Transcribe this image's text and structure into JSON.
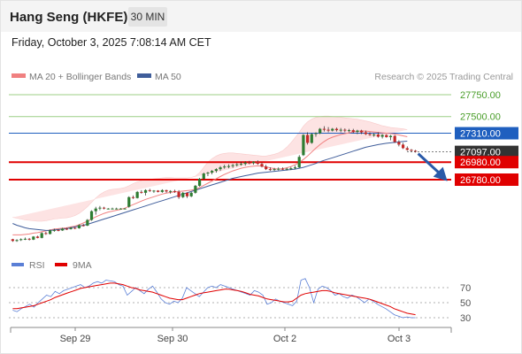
{
  "header": {
    "title": "Hang Seng (HKFE)",
    "timeframe": "30 MIN"
  },
  "datetime": "Friday, October 3, 2025 7:08:14 AM CET",
  "legend": {
    "ma20": "MA 20 + Bollinger Bands",
    "ma50": "MA 50",
    "credit": "Research © 2025 Trading Central"
  },
  "colors": {
    "candle_up": "#2e7d32",
    "candle_down": "#c62828",
    "ma20": "#f08080",
    "ma50": "#3f5d9a",
    "bollinger_fill": "#fde3e3",
    "resistance": "#4a9e2a",
    "pivot": "#1f5fbf",
    "support": "#e00000",
    "current": "#333333",
    "rsi": "#5a7fd6",
    "rsi_ma": "#e00000",
    "arrow": "#2a5aa8"
  },
  "chart_data": [
    {
      "type": "candlestick",
      "y_scale": [
        26700,
        27810
      ],
      "levels": [
        {
          "label": "27750.00",
          "value": 27750,
          "kind": "resistance"
        },
        {
          "label": "27500.00",
          "value": 27500,
          "kind": "resistance"
        },
        {
          "label": "27310.00",
          "value": 27310,
          "kind": "pivot"
        },
        {
          "label": "27097.00",
          "value": 27097,
          "kind": "current"
        },
        {
          "label": "26980.00",
          "value": 26980,
          "kind": "support"
        },
        {
          "label": "26780.00",
          "value": 26780,
          "kind": "support"
        }
      ],
      "x_labels": [
        "Sep 29",
        "Sep 30",
        "Oct 2",
        "Oct 3"
      ],
      "ohlc": [
        [
          26100,
          26105,
          26070,
          26080
        ],
        [
          26080,
          26100,
          26070,
          26090
        ],
        [
          26090,
          26110,
          26080,
          26100
        ],
        [
          26100,
          26120,
          26090,
          26105
        ],
        [
          26105,
          26115,
          26085,
          26095
        ],
        [
          26095,
          26135,
          26090,
          26130
        ],
        [
          26130,
          26140,
          26110,
          26115
        ],
        [
          26115,
          26180,
          26110,
          26170
        ],
        [
          26170,
          26185,
          26150,
          26160
        ],
        [
          26160,
          26210,
          26155,
          26200
        ],
        [
          26200,
          26220,
          26185,
          26205
        ],
        [
          26205,
          26215,
          26190,
          26200
        ],
        [
          26200,
          26230,
          26195,
          26220
        ],
        [
          26220,
          26230,
          26205,
          26215
        ],
        [
          26215,
          26240,
          26210,
          26230
        ],
        [
          26230,
          26235,
          26215,
          26225
        ],
        [
          26225,
          26270,
          26220,
          26260
        ],
        [
          26260,
          26275,
          26245,
          26255
        ],
        [
          26255,
          26330,
          26250,
          26320
        ],
        [
          26320,
          26430,
          26310,
          26420
        ],
        [
          26420,
          26470,
          26380,
          26450
        ],
        [
          26450,
          26480,
          26430,
          26460
        ],
        [
          26460,
          26470,
          26440,
          26450
        ],
        [
          26450,
          26455,
          26440,
          26450
        ],
        [
          26450,
          26460,
          26440,
          26450
        ],
        [
          26450,
          26460,
          26440,
          26450
        ],
        [
          26450,
          26455,
          26445,
          26450
        ],
        [
          26450,
          26455,
          26445,
          26450
        ],
        [
          26470,
          26590,
          26460,
          26580
        ],
        [
          26580,
          26600,
          26560,
          26570
        ],
        [
          26570,
          26650,
          26565,
          26640
        ],
        [
          26640,
          26660,
          26620,
          26630
        ],
        [
          26630,
          26670,
          26600,
          26660
        ],
        [
          26660,
          26675,
          26640,
          26650
        ],
        [
          26650,
          26660,
          26630,
          26655
        ],
        [
          26655,
          26660,
          26635,
          26640
        ],
        [
          26640,
          26670,
          26630,
          26660
        ],
        [
          26660,
          26665,
          26630,
          26645
        ],
        [
          26645,
          26660,
          26620,
          26650
        ],
        [
          26650,
          26665,
          26630,
          26640
        ],
        [
          26640,
          26660,
          26560,
          26580
        ],
        [
          26580,
          26640,
          26570,
          26630
        ],
        [
          26630,
          26635,
          26570,
          26590
        ],
        [
          26590,
          26640,
          26580,
          26630
        ],
        [
          26630,
          26720,
          26620,
          26710
        ],
        [
          26710,
          26800,
          26700,
          26790
        ],
        [
          26790,
          26860,
          26780,
          26850
        ],
        [
          26850,
          26870,
          26820,
          26860
        ],
        [
          26860,
          26890,
          26840,
          26880
        ],
        [
          26880,
          26910,
          26860,
          26900
        ],
        [
          26900,
          26935,
          26880,
          26920
        ],
        [
          26920,
          26950,
          26905,
          26930
        ],
        [
          26930,
          26955,
          26910,
          26935
        ],
        [
          26935,
          26960,
          26915,
          26945
        ],
        [
          26945,
          26970,
          26930,
          26955
        ],
        [
          26955,
          26985,
          26940,
          26960
        ],
        [
          26960,
          26990,
          26940,
          26975
        ],
        [
          26975,
          26995,
          26955,
          26970
        ],
        [
          26970,
          26990,
          26950,
          26985
        ],
        [
          26985,
          27000,
          26950,
          26960
        ],
        [
          26960,
          26975,
          26920,
          26930
        ],
        [
          26930,
          26950,
          26890,
          26900
        ],
        [
          26900,
          26920,
          26880,
          26895
        ],
        [
          26895,
          26915,
          26880,
          26900
        ],
        [
          26900,
          26920,
          26885,
          26905
        ],
        [
          26905,
          26920,
          26890,
          26900
        ],
        [
          26900,
          26915,
          26885,
          26905
        ],
        [
          26905,
          26925,
          26890,
          26910
        ],
        [
          26910,
          26940,
          26900,
          26920
        ],
        [
          26920,
          27060,
          26915,
          27040
        ],
        [
          27060,
          27300,
          27050,
          27290
        ],
        [
          27290,
          27320,
          27180,
          27200
        ],
        [
          27200,
          27310,
          27190,
          27300
        ],
        [
          27300,
          27320,
          27270,
          27310
        ],
        [
          27310,
          27370,
          27300,
          27360
        ],
        [
          27360,
          27390,
          27330,
          27350
        ],
        [
          27350,
          27380,
          27320,
          27340
        ],
        [
          27340,
          27370,
          27330,
          27360
        ],
        [
          27360,
          27375,
          27330,
          27345
        ],
        [
          27345,
          27370,
          27320,
          27350
        ],
        [
          27350,
          27365,
          27320,
          27340
        ],
        [
          27340,
          27360,
          27320,
          27345
        ],
        [
          27345,
          27360,
          27310,
          27325
        ],
        [
          27325,
          27350,
          27300,
          27340
        ],
        [
          27340,
          27350,
          27300,
          27320
        ],
        [
          27320,
          27340,
          27290,
          27300
        ],
        [
          27300,
          27320,
          27280,
          27290
        ],
        [
          27290,
          27310,
          27270,
          27295
        ],
        [
          27295,
          27320,
          27260,
          27270
        ],
        [
          27270,
          27300,
          27250,
          27290
        ],
        [
          27290,
          27300,
          27260,
          27265
        ],
        [
          27265,
          27290,
          27230,
          27280
        ],
        [
          27280,
          27290,
          27200,
          27210
        ],
        [
          27210,
          27230,
          27160,
          27180
        ],
        [
          27180,
          27200,
          27130,
          27140
        ],
        [
          27140,
          27160,
          27110,
          27120
        ],
        [
          27120,
          27130,
          27100,
          27110
        ],
        [
          27110,
          27120,
          27090,
          27100
        ]
      ],
      "ma20": [
        26150,
        26150,
        26150,
        26155,
        26160,
        26170,
        26175,
        26185,
        26195,
        26205,
        26215,
        26220,
        26225,
        26230,
        26240,
        26250,
        26265,
        26285,
        26305,
        26330,
        26355,
        26375,
        26395,
        26410,
        26420,
        26430,
        26440,
        26455,
        26475,
        26495,
        26515,
        26535,
        26555,
        26570,
        26585,
        26600,
        26615,
        26625,
        26635,
        26640,
        26645,
        26650,
        26655,
        26660,
        26670,
        26690,
        26715,
        26740,
        26765,
        26790,
        26815,
        26840,
        26860,
        26880,
        26895,
        26910,
        26920,
        26930,
        26935,
        26938,
        26935,
        26925,
        26915,
        26905,
        26900,
        26905,
        26915,
        26930,
        26950,
        26975,
        27010,
        27050,
        27095,
        27140,
        27180,
        27215,
        27245,
        27265,
        27280,
        27295,
        27305,
        27315,
        27325,
        27332,
        27336,
        27335,
        27330,
        27325,
        27320,
        27315,
        27310,
        27305,
        27300,
        27290,
        27280,
        27270
      ],
      "bb_upper": [
        26350,
        26340,
        26330,
        26320,
        26315,
        26310,
        26305,
        26305,
        26310,
        26320,
        26330,
        26335,
        26340,
        26345,
        26355,
        26370,
        26395,
        26430,
        26470,
        26520,
        26570,
        26610,
        26640,
        26660,
        26670,
        26675,
        26680,
        26690,
        26710,
        26735,
        26755,
        26770,
        26780,
        26785,
        26790,
        26795,
        26800,
        26805,
        26805,
        26800,
        26800,
        26800,
        26800,
        26805,
        26820,
        26860,
        26920,
        26980,
        27020,
        27050,
        27070,
        27080,
        27085,
        27085,
        27080,
        27075,
        27070,
        27065,
        27060,
        27055,
        27050,
        27050,
        27060,
        27070,
        27085,
        27110,
        27150,
        27200,
        27260,
        27320,
        27390,
        27440,
        27470,
        27490,
        27500,
        27505,
        27505,
        27500,
        27495,
        27490,
        27485,
        27480,
        27475,
        27470,
        27460,
        27450,
        27440,
        27425,
        27410,
        27395,
        27385,
        27375,
        27370,
        27365,
        27360,
        27350
      ],
      "bb_lower": [
        25960,
        25960,
        25965,
        25975,
        25985,
        25995,
        26000,
        26010,
        26020,
        26030,
        26040,
        26050,
        26060,
        26075,
        26090,
        26105,
        26120,
        26130,
        26135,
        26140,
        26150,
        26160,
        26175,
        26195,
        26215,
        26240,
        26265,
        26295,
        26325,
        26355,
        26385,
        26415,
        26440,
        26460,
        26475,
        26490,
        26505,
        26515,
        26520,
        26525,
        26530,
        26535,
        26540,
        26545,
        26550,
        26555,
        26560,
        26570,
        26590,
        26615,
        26645,
        26680,
        26715,
        26745,
        26770,
        26790,
        26800,
        26805,
        26810,
        26810,
        26805,
        26795,
        26785,
        26775,
        26760,
        26745,
        26735,
        26735,
        26740,
        26750,
        26760,
        26770,
        26780,
        26800,
        26860,
        26930,
        26990,
        27040,
        27080,
        27110,
        27135,
        27160,
        27180,
        27200,
        27215,
        27225,
        27230,
        27230,
        27225,
        27220,
        27215,
        27210,
        27200,
        27190,
        27180,
        27170
      ],
      "ma50": [
        26280,
        26260,
        26245,
        26230,
        26220,
        26215,
        26210,
        26205,
        26200,
        26200,
        26205,
        26210,
        26215,
        26220,
        26230,
        26240,
        26250,
        26260,
        26270,
        26285,
        26300,
        26315,
        26330,
        26345,
        26360,
        26375,
        26390,
        26405,
        26420,
        26435,
        26450,
        26465,
        26480,
        26495,
        26510,
        26525,
        26540,
        26555,
        26570,
        26585,
        26600,
        26615,
        26630,
        26645,
        26660,
        26675,
        26690,
        26705,
        26720,
        26735,
        26750,
        26765,
        26780,
        26795,
        26805,
        26815,
        26825,
        26835,
        26845,
        26855,
        26860,
        26865,
        26870,
        26875,
        26880,
        26885,
        26890,
        26895,
        26900,
        26910,
        26920,
        26935,
        26950,
        26965,
        26985,
        27000,
        27015,
        27030,
        27045,
        27060,
        27075,
        27090,
        27105,
        27120,
        27135,
        27150,
        27160,
        27170,
        27180,
        27188,
        27195,
        27200,
        27205,
        27210,
        27215,
        27220
      ]
    },
    {
      "type": "line",
      "series": [
        {
          "name": "RSI"
        },
        {
          "name": "9MA"
        }
      ],
      "y_ticks": [
        70,
        50,
        30
      ],
      "y_range": [
        20,
        85
      ],
      "rsi": [
        40,
        38,
        42,
        45,
        48,
        44,
        50,
        55,
        60,
        58,
        65,
        62,
        66,
        68,
        70,
        72,
        74,
        70,
        72,
        76,
        78,
        76,
        80,
        79,
        78,
        74,
        72,
        60,
        65,
        70,
        66,
        62,
        68,
        72,
        64,
        55,
        50,
        48,
        52,
        50,
        56,
        70,
        66,
        62,
        58,
        64,
        70,
        72,
        70,
        74,
        72,
        70,
        68,
        66,
        64,
        62,
        60,
        66,
        64,
        60,
        48,
        50,
        55,
        52,
        50,
        48,
        46,
        52,
        80,
        82,
        70,
        50,
        68,
        72,
        70,
        66,
        60,
        62,
        58,
        56,
        60,
        58,
        54,
        50,
        55,
        52,
        48,
        45,
        42,
        38,
        34,
        32,
        30,
        31,
        30,
        30
      ],
      "ma9": [
        42,
        42,
        43,
        44,
        45,
        46,
        48,
        50,
        52,
        54,
        57,
        59,
        61,
        63,
        65,
        67,
        69,
        70,
        71,
        72,
        73,
        74,
        75,
        76,
        76,
        75,
        74,
        72,
        70,
        69,
        67,
        66,
        65,
        64,
        62,
        60,
        58,
        56,
        55,
        54,
        54,
        56,
        58,
        60,
        62,
        63,
        64,
        65,
        66,
        67,
        68,
        68,
        67,
        66,
        65,
        63,
        61,
        60,
        59,
        57,
        55,
        54,
        53,
        52,
        51,
        51,
        52,
        56,
        60,
        62,
        63,
        64,
        65,
        66,
        66,
        65,
        63,
        62,
        61,
        60,
        59,
        58,
        57,
        56,
        55,
        53,
        51,
        49,
        47,
        45,
        42,
        40,
        38,
        36,
        35,
        34
      ]
    }
  ]
}
